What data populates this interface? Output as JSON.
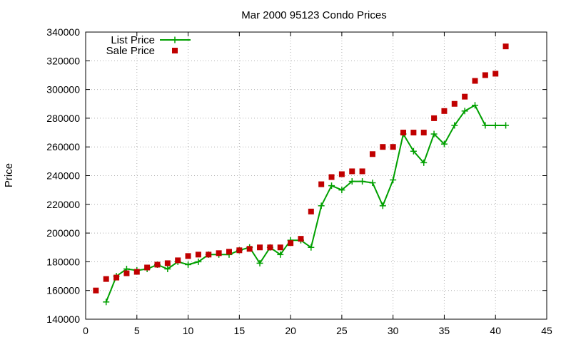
{
  "chart_data": {
    "type": "line",
    "title": "Mar 2000 95123 Condo Prices",
    "xlabel": "",
    "ylabel": "Price",
    "xlim": [
      0,
      45
    ],
    "ylim": [
      140000,
      340000
    ],
    "x_ticks": [
      0,
      5,
      10,
      15,
      20,
      25,
      30,
      35,
      40,
      45
    ],
    "y_ticks": [
      140000,
      160000,
      180000,
      200000,
      220000,
      240000,
      260000,
      280000,
      300000,
      320000,
      340000
    ],
    "x_tick_labels": [
      "0",
      "5",
      "10",
      "15",
      "20",
      "25",
      "30",
      "35",
      "40",
      "45"
    ],
    "y_tick_labels": [
      "140000",
      "160000",
      "180000",
      "200000",
      "220000",
      "240000",
      "260000",
      "280000",
      "300000",
      "320000",
      "340000"
    ],
    "grid": true,
    "legend_position": "top-left",
    "series": [
      {
        "name": "List Price",
        "style": "line+plus",
        "color": "#00a000",
        "x": [
          2,
          3,
          4,
          5,
          6,
          7,
          8,
          9,
          10,
          11,
          12,
          13,
          14,
          15,
          16,
          17,
          18,
          19,
          20,
          21,
          22,
          23,
          24,
          25,
          26,
          27,
          28,
          29,
          30,
          31,
          32,
          33,
          34,
          35,
          36,
          37,
          38,
          39,
          40,
          41
        ],
        "y": [
          152000,
          170000,
          175000,
          174000,
          175000,
          178000,
          175000,
          180000,
          178000,
          180000,
          185000,
          185000,
          185000,
          188000,
          190000,
          179000,
          190000,
          185000,
          195000,
          195000,
          190000,
          219000,
          233000,
          230000,
          236000,
          236000,
          235000,
          219000,
          237000,
          269000,
          257000,
          249000,
          269000,
          262000,
          275000,
          285000,
          289000,
          275000,
          275000,
          275000
        ]
      },
      {
        "name": "Sale Price",
        "style": "square",
        "color": "#c00000",
        "x": [
          1,
          2,
          3,
          4,
          5,
          6,
          7,
          8,
          9,
          10,
          11,
          12,
          13,
          14,
          15,
          16,
          17,
          18,
          19,
          20,
          21,
          22,
          23,
          24,
          25,
          26,
          27,
          28,
          29,
          30,
          31,
          32,
          33,
          34,
          35,
          36,
          37,
          38,
          39,
          40,
          41
        ],
        "y": [
          160000,
          168000,
          169000,
          172000,
          173000,
          176000,
          178000,
          179000,
          181000,
          184000,
          185000,
          185000,
          186000,
          187000,
          188000,
          189000,
          190000,
          190000,
          190000,
          193000,
          196000,
          215000,
          234000,
          239000,
          241000,
          243000,
          243000,
          255000,
          260000,
          260000,
          270000,
          270000,
          270000,
          280000,
          285000,
          290000,
          295000,
          306000,
          310000,
          311000,
          330000
        ]
      }
    ]
  }
}
